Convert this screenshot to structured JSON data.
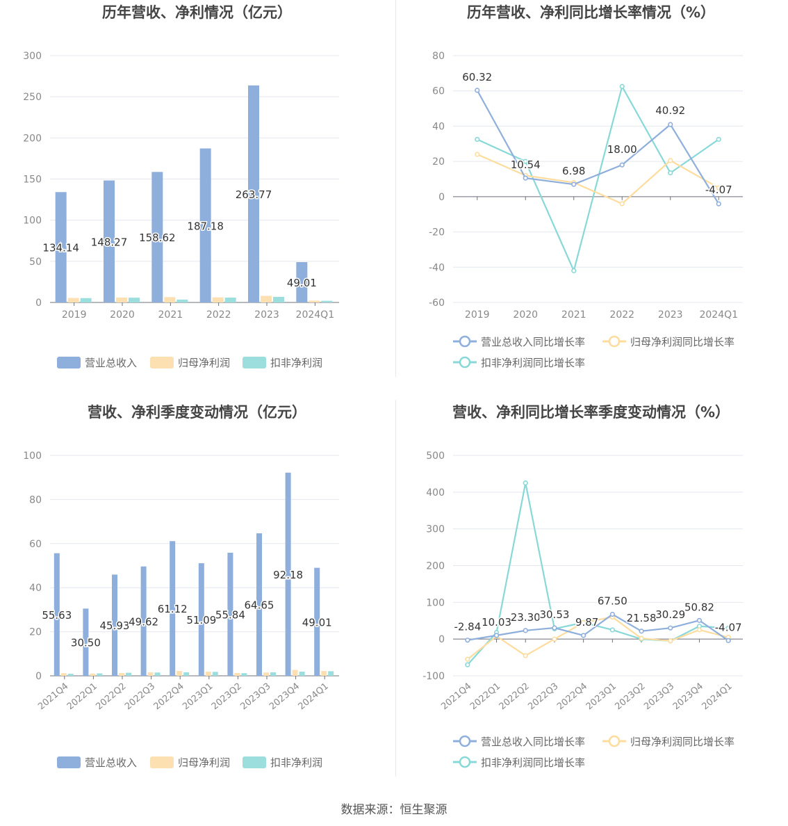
{
  "source_label": "数据来源：恒生聚源",
  "colors": {
    "revenue": "#8eaedc",
    "net_profit": "#fde0b2",
    "deducted_profit": "#9cdede",
    "revenue_line": "#8eaedc",
    "net_line": "#fddc9e",
    "deducted_line": "#88d8d8"
  },
  "chart_data": [
    {
      "type": "bar",
      "title": "历年营收、净利情况（亿元）",
      "categories": [
        "2019",
        "2020",
        "2021",
        "2022",
        "2023",
        "2024Q1"
      ],
      "ylim": [
        0,
        300
      ],
      "yticks": [
        0,
        50,
        100,
        150,
        200,
        250,
        300
      ],
      "series": [
        {
          "name": "营业总收入",
          "values": [
            134.14,
            148.27,
            158.62,
            187.18,
            263.77,
            49.01
          ],
          "labels": [
            "134.14",
            "148.27",
            "158.62",
            "187.18",
            "263.77",
            "49.01"
          ]
        },
        {
          "name": "归母净利润",
          "values": [
            5.5,
            6.0,
            6.5,
            6.2,
            8.0,
            2.2
          ]
        },
        {
          "name": "扣非净利润",
          "values": [
            5.3,
            5.8,
            3.5,
            5.9,
            6.8,
            2.0
          ]
        }
      ],
      "legend": "bottom"
    },
    {
      "type": "line",
      "title": "历年营收、净利同比增长率情况（%）",
      "categories": [
        "2019",
        "2020",
        "2021",
        "2022",
        "2023",
        "2024Q1"
      ],
      "ylim": [
        -60,
        80
      ],
      "yticks": [
        -60,
        -40,
        -20,
        0,
        20,
        40,
        60,
        80
      ],
      "series": [
        {
          "name": "营业总收入同比增长率",
          "values": [
            60.32,
            10.54,
            6.98,
            18.0,
            40.92,
            -4.07
          ],
          "labels": [
            "60.32",
            "10.54",
            "6.98",
            "18.00",
            "40.92",
            "-4.07"
          ]
        },
        {
          "name": "归母净利润同比增长率",
          "values": [
            24,
            12,
            8,
            -4,
            20.5,
            5
          ]
        },
        {
          "name": "扣非净利润同比增长率",
          "values": [
            32.5,
            20,
            -42,
            62.5,
            13.5,
            32.5
          ]
        }
      ],
      "legend": "bottom"
    },
    {
      "type": "bar",
      "title": "营收、净利季度变动情况（亿元）",
      "categories": [
        "2021Q4",
        "2022Q1",
        "2022Q2",
        "2022Q3",
        "2022Q4",
        "2023Q1",
        "2023Q2",
        "2023Q3",
        "2023Q4",
        "2024Q1"
      ],
      "ylim": [
        0,
        100
      ],
      "yticks": [
        0,
        20,
        40,
        60,
        80,
        100
      ],
      "series": [
        {
          "name": "营业总收入",
          "values": [
            55.63,
            30.5,
            45.93,
            49.62,
            61.12,
            51.09,
            55.84,
            64.65,
            92.18,
            49.01
          ],
          "labels": [
            "55.63",
            "30.50",
            "45.93",
            "49.62",
            "61.12",
            "51.09",
            "55.84",
            "64.65",
            "92.18",
            "49.01"
          ]
        },
        {
          "name": "归母净利润",
          "values": [
            1.2,
            1.0,
            1.3,
            1.6,
            2.2,
            1.9,
            1.3,
            1.5,
            2.7,
            2.2
          ]
        },
        {
          "name": "扣非净利润",
          "values": [
            0.9,
            1.1,
            1.4,
            1.5,
            1.6,
            1.8,
            1.2,
            1.6,
            1.9,
            2.1
          ]
        }
      ],
      "legend": "bottom"
    },
    {
      "type": "line",
      "title": "营收、净利同比增长率季度变动情况（%）",
      "categories": [
        "2021Q4",
        "2022Q1",
        "2022Q2",
        "2022Q3",
        "2022Q4",
        "2023Q1",
        "2023Q2",
        "2023Q3",
        "2023Q4",
        "2024Q1"
      ],
      "ylim": [
        -100,
        500
      ],
      "yticks": [
        -100,
        0,
        100,
        200,
        300,
        400,
        500
      ],
      "series": [
        {
          "name": "营业总收入同比增长率",
          "values": [
            -2.84,
            10.03,
            23.3,
            30.53,
            9.87,
            67.5,
            21.58,
            30.29,
            50.82,
            -4.07
          ],
          "labels": [
            "-2.84",
            "10.03",
            "23.30",
            "30.53",
            "9.87",
            "67.50",
            "21.58",
            "30.29",
            "50.82",
            "-4.07"
          ]
        },
        {
          "name": "归母净利润同比增长率",
          "values": [
            -55,
            8,
            -45,
            0,
            45,
            60,
            2,
            -5,
            25,
            5
          ]
        },
        {
          "name": "扣非净利润同比增长率",
          "values": [
            -70,
            18,
            425,
            28,
            45,
            25,
            0,
            -5,
            35,
            30
          ]
        }
      ],
      "legend": "bottom"
    }
  ]
}
